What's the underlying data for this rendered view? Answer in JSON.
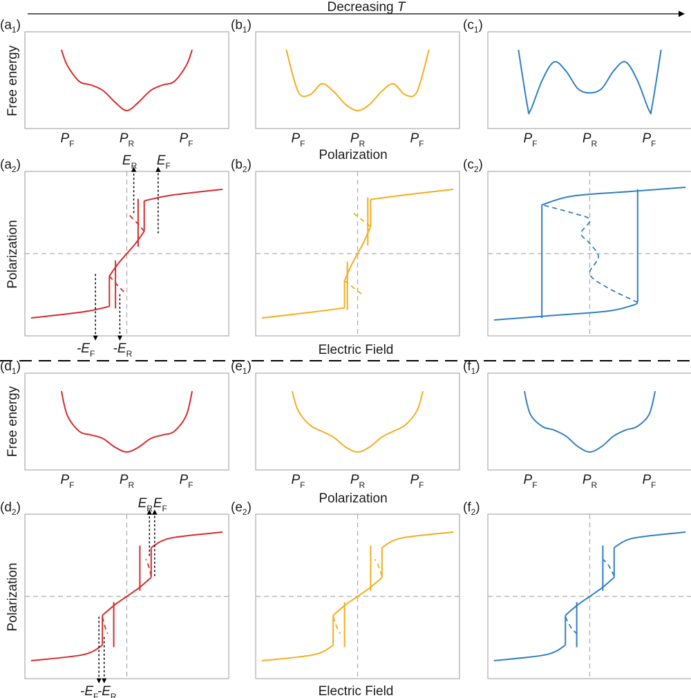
{
  "header": {
    "label_prefix": "Decreasing ",
    "label_var": "T"
  },
  "axes": {
    "free_energy": "Free energy",
    "polarization": "Polarization",
    "electric_field": "Electric Field"
  },
  "p_ticks": [
    {
      "main": "P",
      "sub": "F"
    },
    {
      "main": "P",
      "sub": "R"
    },
    {
      "main": "P",
      "sub": "F"
    }
  ],
  "field_labels": {
    "ER": {
      "main": "E",
      "sub": "R"
    },
    "EF": {
      "main": "E",
      "sub": "F"
    },
    "mEF": {
      "main": "-E",
      "sub": "F"
    },
    "mER": {
      "main": "-E",
      "sub": "R"
    }
  },
  "colors": {
    "red": "#d62a2a",
    "orange": "#f5ac1b",
    "blue": "#2f7fc0",
    "guide": "#aaaaaa",
    "frame": "#999999"
  },
  "panels": [
    {
      "id": "a1",
      "letter": "a",
      "sub": "1",
      "color": "#d62a2a",
      "kind": "energy",
      "curve": [
        [
          -1.1,
          1.0
        ],
        [
          -1.0,
          0.74
        ],
        [
          -0.8,
          0.48
        ],
        [
          -0.6,
          0.42
        ],
        [
          -0.4,
          0.33
        ],
        [
          -0.2,
          0.14
        ],
        [
          0,
          0.0
        ],
        [
          0.2,
          0.14
        ],
        [
          0.4,
          0.33
        ],
        [
          0.6,
          0.42
        ],
        [
          0.8,
          0.48
        ],
        [
          1.0,
          0.74
        ],
        [
          1.1,
          1.0
        ]
      ]
    },
    {
      "id": "b1",
      "letter": "b",
      "sub": "1",
      "color": "#f5ac1b",
      "kind": "energy",
      "curve": [
        [
          -1.2,
          1.0
        ],
        [
          -1.0,
          0.31
        ],
        [
          -0.8,
          0.26
        ],
        [
          -0.6,
          0.44
        ],
        [
          -0.4,
          0.31
        ],
        [
          -0.2,
          0.1
        ],
        [
          0,
          0.0
        ],
        [
          0.2,
          0.1
        ],
        [
          0.4,
          0.31
        ],
        [
          0.6,
          0.44
        ],
        [
          0.8,
          0.26
        ],
        [
          1.0,
          0.31
        ],
        [
          1.2,
          1.0
        ]
      ]
    },
    {
      "id": "c1",
      "letter": "c",
      "sub": "1",
      "color": "#2f7fc0",
      "kind": "energy",
      "curve": [
        [
          -1.2,
          1.0
        ],
        [
          -1.05,
          0.08
        ],
        [
          -1.0,
          0.0
        ],
        [
          -0.8,
          0.5
        ],
        [
          -0.6,
          0.8
        ],
        [
          -0.4,
          0.65
        ],
        [
          -0.2,
          0.36
        ],
        [
          0,
          0.29
        ],
        [
          0.2,
          0.36
        ],
        [
          0.4,
          0.65
        ],
        [
          0.6,
          0.8
        ],
        [
          0.8,
          0.5
        ],
        [
          1.0,
          0.0
        ],
        [
          1.05,
          0.08
        ],
        [
          1.2,
          1.0
        ]
      ]
    },
    {
      "id": "a2",
      "letter": "a",
      "sub": "2",
      "color": "#d62a2a",
      "kind": "loop",
      "labels": "top-bottom",
      "curve": [
        [
          -1.1,
          -0.95
        ],
        [
          -0.5,
          -0.85
        ],
        [
          -0.2,
          -0.75
        ],
        [
          -0.2,
          -0.32
        ],
        [
          -0.1,
          -0.08
        ],
        [
          0,
          0.0
        ],
        [
          0.1,
          0.08
        ],
        [
          0.2,
          0.32
        ],
        [
          0.2,
          0.75
        ],
        [
          0.5,
          0.85
        ],
        [
          1.1,
          0.95
        ]
      ],
      "jumps": [
        [
          0.2,
          0.33,
          0.2,
          0.78
        ],
        [
          -0.2,
          -0.33,
          -0.2,
          -0.78
        ]
      ],
      "unstable": [
        [
          [
            0.2,
            0.33
          ],
          [
            0.12,
            0.45
          ],
          [
            0.02,
            0.58
          ]
        ],
        [
          [
            -0.2,
            -0.33
          ],
          [
            -0.12,
            -0.45
          ],
          [
            -0.02,
            -0.58
          ]
        ]
      ]
    },
    {
      "id": "b2",
      "letter": "b",
      "sub": "2",
      "color": "#f5ac1b",
      "kind": "loop",
      "curve": [
        [
          -1.1,
          -0.95
        ],
        [
          -0.5,
          -0.85
        ],
        [
          -0.15,
          -0.75
        ],
        [
          -0.15,
          -0.4
        ],
        [
          -0.1,
          -0.12
        ],
        [
          0,
          -0.0
        ],
        [
          0.1,
          0.12
        ],
        [
          0.15,
          0.4
        ],
        [
          0.15,
          0.75
        ],
        [
          0.5,
          0.85
        ],
        [
          1.1,
          0.95
        ]
      ],
      "jumps": [
        [
          0.15,
          0.8,
          0.15,
          0.4
        ],
        [
          -0.15,
          -0.8,
          -0.15,
          -0.4
        ]
      ],
      "unstable": [
        [
          [
            0.15,
            0.4
          ],
          [
            0.05,
            0.5
          ],
          [
            -0.05,
            0.6
          ]
        ],
        [
          [
            -0.15,
            -0.4
          ],
          [
            -0.05,
            -0.5
          ],
          [
            0.05,
            -0.6
          ]
        ]
      ]
    },
    {
      "id": "c2",
      "letter": "c",
      "sub": "2",
      "color": "#2f7fc0",
      "kind": "loop",
      "curve": [
        [
          -1.1,
          -0.98
        ],
        [
          -0.5,
          -0.92
        ],
        [
          0.2,
          -0.85
        ],
        [
          0.5,
          -0.75
        ],
        [
          0.55,
          -0.55
        ],
        [
          0.55,
          0.88
        ],
        [
          0.8,
          0.9
        ],
        [
          1.1,
          0.93
        ]
      ],
      "jumps": [
        [
          0.55,
          -0.7,
          0.55,
          0.88
        ],
        [
          -0.55,
          0.7,
          -0.55,
          -0.88
        ]
      ],
      "unstable": [
        [
          [
            0.55,
            -0.72
          ],
          [
            0.2,
            -0.5
          ],
          [
            0.0,
            -0.3
          ],
          [
            0.1,
            -0.05
          ],
          [
            0.0,
            0.15
          ],
          [
            -0.1,
            0.3
          ],
          [
            0.0,
            0.5
          ],
          [
            -0.2,
            0.6
          ],
          [
            -0.55,
            0.72
          ]
        ]
      ]
    },
    {
      "id": "d1",
      "letter": "d",
      "sub": "1",
      "color": "#d62a2a",
      "kind": "energy",
      "curve": [
        [
          -1.1,
          1.0
        ],
        [
          -1.0,
          0.6
        ],
        [
          -0.8,
          0.34
        ],
        [
          -0.6,
          0.28
        ],
        [
          -0.4,
          0.22
        ],
        [
          -0.2,
          0.08
        ],
        [
          0,
          0.0
        ],
        [
          0.2,
          0.08
        ],
        [
          0.4,
          0.22
        ],
        [
          0.6,
          0.28
        ],
        [
          0.8,
          0.34
        ],
        [
          1.0,
          0.6
        ],
        [
          1.1,
          1.0
        ]
      ]
    },
    {
      "id": "e1",
      "letter": "e",
      "sub": "1",
      "color": "#f5ac1b",
      "kind": "energy",
      "curve": [
        [
          -1.1,
          1.0
        ],
        [
          -1.0,
          0.68
        ],
        [
          -0.8,
          0.44
        ],
        [
          -0.6,
          0.34
        ],
        [
          -0.4,
          0.24
        ],
        [
          -0.2,
          0.08
        ],
        [
          0,
          0.0
        ],
        [
          0.2,
          0.08
        ],
        [
          0.4,
          0.24
        ],
        [
          0.6,
          0.34
        ],
        [
          0.8,
          0.44
        ],
        [
          1.0,
          0.68
        ],
        [
          1.1,
          1.0
        ]
      ]
    },
    {
      "id": "f1",
      "letter": "f",
      "sub": "1",
      "color": "#2f7fc0",
      "kind": "energy",
      "curve": [
        [
          -1.1,
          1.0
        ],
        [
          -1.0,
          0.62
        ],
        [
          -0.8,
          0.42
        ],
        [
          -0.6,
          0.36
        ],
        [
          -0.4,
          0.26
        ],
        [
          -0.2,
          0.09
        ],
        [
          0,
          0.0
        ],
        [
          0.2,
          0.09
        ],
        [
          0.4,
          0.26
        ],
        [
          0.6,
          0.36
        ],
        [
          0.8,
          0.42
        ],
        [
          1.0,
          0.62
        ],
        [
          1.1,
          1.0
        ]
      ]
    },
    {
      "id": "d2",
      "letter": "d",
      "sub": "2",
      "color": "#d62a2a",
      "kind": "loop",
      "labels": "top-bottom-close",
      "curve": [
        [
          -1.1,
          -0.95
        ],
        [
          -0.5,
          -0.85
        ],
        [
          -0.28,
          -0.7
        ],
        [
          -0.28,
          -0.25
        ],
        [
          -0.1,
          -0.1
        ],
        [
          0,
          0.0
        ],
        [
          0.1,
          0.1
        ],
        [
          0.28,
          0.25
        ],
        [
          0.28,
          0.7
        ],
        [
          0.5,
          0.85
        ],
        [
          1.1,
          0.95
        ]
      ],
      "jumps": [
        [
          0.28,
          0.28,
          0.28,
          0.72
        ],
        [
          -0.28,
          -0.28,
          -0.28,
          -0.72
        ]
      ],
      "unstable": [
        [
          [
            0.28,
            0.3
          ],
          [
            0.25,
            0.45
          ],
          [
            0.22,
            0.55
          ]
        ],
        [
          [
            -0.28,
            -0.3
          ],
          [
            -0.25,
            -0.45
          ],
          [
            -0.22,
            -0.55
          ]
        ]
      ]
    },
    {
      "id": "e2",
      "letter": "e",
      "sub": "2",
      "color": "#f5ac1b",
      "kind": "loop",
      "curve": [
        [
          -1.1,
          -0.95
        ],
        [
          -0.5,
          -0.85
        ],
        [
          -0.28,
          -0.7
        ],
        [
          -0.28,
          -0.25
        ],
        [
          -0.1,
          -0.1
        ],
        [
          0,
          0.0
        ],
        [
          0.1,
          0.1
        ],
        [
          0.28,
          0.25
        ],
        [
          0.28,
          0.7
        ],
        [
          0.5,
          0.85
        ],
        [
          1.1,
          0.95
        ]
      ],
      "jumps": [
        [
          0.28,
          0.28,
          0.28,
          0.72
        ],
        [
          -0.28,
          -0.28,
          -0.28,
          -0.72
        ]
      ],
      "unstable": [
        [
          [
            0.28,
            0.3
          ],
          [
            0.24,
            0.45
          ],
          [
            0.2,
            0.55
          ]
        ],
        [
          [
            -0.28,
            -0.3
          ],
          [
            -0.24,
            -0.45
          ],
          [
            -0.2,
            -0.55
          ]
        ]
      ]
    },
    {
      "id": "f2",
      "letter": "f",
      "sub": "2",
      "color": "#2f7fc0",
      "kind": "loop",
      "curve": [
        [
          -1.1,
          -0.95
        ],
        [
          -0.5,
          -0.85
        ],
        [
          -0.28,
          -0.7
        ],
        [
          -0.28,
          -0.25
        ],
        [
          -0.1,
          -0.1
        ],
        [
          0,
          0.0
        ],
        [
          0.1,
          0.1
        ],
        [
          0.28,
          0.25
        ],
        [
          0.28,
          0.7
        ],
        [
          0.5,
          0.85
        ],
        [
          1.1,
          0.95
        ]
      ],
      "jumps": [
        [
          0.28,
          0.28,
          0.28,
          0.72
        ],
        [
          -0.28,
          -0.28,
          -0.28,
          -0.72
        ]
      ],
      "unstable": [
        [
          [
            0.28,
            0.3
          ],
          [
            0.22,
            0.45
          ],
          [
            0.15,
            0.55
          ]
        ],
        [
          [
            -0.28,
            -0.3
          ],
          [
            -0.22,
            -0.45
          ],
          [
            -0.15,
            -0.55
          ]
        ]
      ]
    }
  ]
}
